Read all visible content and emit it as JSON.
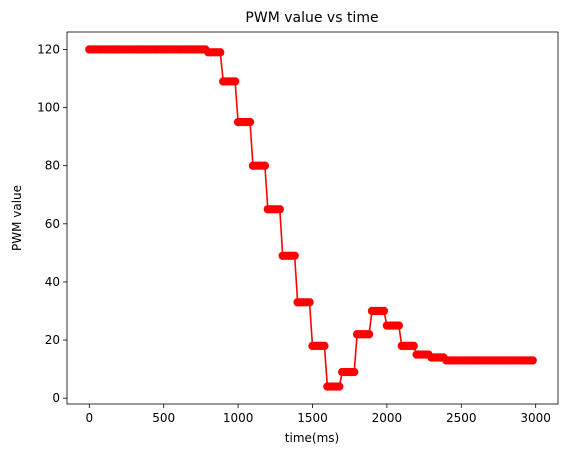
{
  "chart_data": {
    "type": "line",
    "title": "PWM value vs time",
    "xlabel": "time(ms)",
    "ylabel": "PWM value",
    "xlim": [
      -150,
      3150
    ],
    "ylim": [
      -2,
      126
    ],
    "x_ticks": [
      0,
      500,
      1000,
      1500,
      2000,
      2500,
      3000
    ],
    "y_ticks": [
      0,
      20,
      40,
      60,
      80,
      100,
      120
    ],
    "grid": false,
    "legend": "none",
    "marker": "circle",
    "series": [
      {
        "color": "#ff0000",
        "x": [
          0,
          20,
          40,
          60,
          80,
          100,
          120,
          140,
          160,
          180,
          200,
          220,
          240,
          260,
          280,
          300,
          320,
          340,
          360,
          380,
          400,
          420,
          440,
          460,
          480,
          500,
          520,
          540,
          560,
          580,
          600,
          620,
          640,
          660,
          680,
          700,
          720,
          740,
          760,
          780,
          800,
          820,
          840,
          860,
          880,
          900,
          920,
          940,
          960,
          980,
          1000,
          1020,
          1040,
          1060,
          1080,
          1100,
          1120,
          1140,
          1160,
          1180,
          1200,
          1220,
          1240,
          1260,
          1280,
          1300,
          1320,
          1340,
          1360,
          1380,
          1400,
          1420,
          1440,
          1460,
          1480,
          1500,
          1520,
          1540,
          1560,
          1580,
          1600,
          1620,
          1640,
          1660,
          1680,
          1700,
          1720,
          1740,
          1760,
          1780,
          1800,
          1820,
          1840,
          1860,
          1880,
          1900,
          1920,
          1940,
          1960,
          1980,
          2000,
          2020,
          2040,
          2060,
          2080,
          2100,
          2120,
          2140,
          2160,
          2180,
          2200,
          2220,
          2240,
          2260,
          2280,
          2300,
          2320,
          2340,
          2360,
          2380,
          2400,
          2420,
          2440,
          2460,
          2480,
          2500,
          2520,
          2540,
          2560,
          2580,
          2600,
          2620,
          2640,
          2660,
          2680,
          2700,
          2720,
          2740,
          2760,
          2780,
          2800,
          2820,
          2840,
          2860,
          2880,
          2900,
          2920,
          2940,
          2960,
          2980
        ],
        "y": [
          120,
          120,
          120,
          120,
          120,
          120,
          120,
          120,
          120,
          120,
          120,
          120,
          120,
          120,
          120,
          120,
          120,
          120,
          120,
          120,
          120,
          120,
          120,
          120,
          120,
          120,
          120,
          120,
          120,
          120,
          120,
          120,
          120,
          120,
          120,
          120,
          120,
          120,
          120,
          120,
          119,
          119,
          119,
          119,
          119,
          109,
          109,
          109,
          109,
          109,
          95,
          95,
          95,
          95,
          95,
          80,
          80,
          80,
          80,
          80,
          65,
          65,
          65,
          65,
          65,
          49,
          49,
          49,
          49,
          49,
          33,
          33,
          33,
          33,
          33,
          18,
          18,
          18,
          18,
          18,
          4,
          4,
          4,
          4,
          4,
          9,
          9,
          9,
          9,
          9,
          22,
          22,
          22,
          22,
          22,
          30,
          30,
          30,
          30,
          30,
          25,
          25,
          25,
          25,
          25,
          18,
          18,
          18,
          18,
          18,
          15,
          15,
          15,
          15,
          15,
          14,
          14,
          14,
          14,
          14,
          13,
          13,
          13,
          13,
          13,
          13,
          13,
          13,
          13,
          13,
          13,
          13,
          13,
          13,
          13,
          13,
          13,
          13,
          13,
          13,
          13,
          13,
          13,
          13,
          13,
          13,
          13,
          13,
          13,
          13
        ]
      }
    ]
  }
}
